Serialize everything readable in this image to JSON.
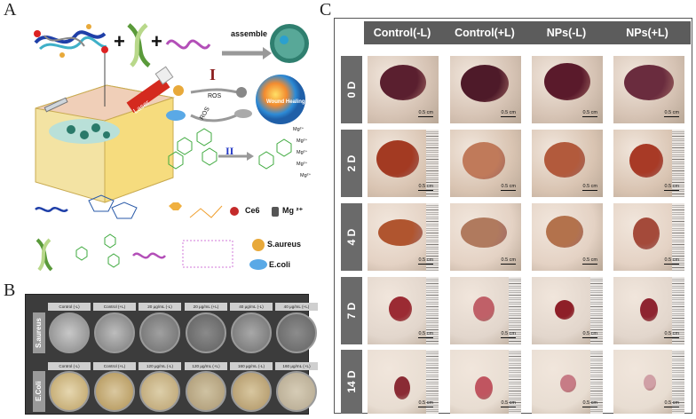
{
  "panel_a": {
    "letter": "A",
    "assemble_label": "assemble",
    "laser_label": "Laser",
    "ros_label_1": "ROS",
    "ros_label_2": "ROS",
    "step_1": "I",
    "step_2": "II",
    "sphere_text": "Wound Healing",
    "ion_labels": [
      "Mg²⁺",
      "Mg²⁺",
      "Mg²⁺",
      "Mg²⁺",
      "Mg²⁺"
    ],
    "legend": {
      "ce6": "Ce6",
      "mg": "Mg ²⁺",
      "saureus": "S.aureus",
      "ecoli": "E.coli"
    }
  },
  "panel_b": {
    "letter": "B",
    "rows": [
      {
        "label": "S.aureus",
        "caps": [
          "Control (-L)",
          "Control (+L)",
          "20 μg/mL (-L)",
          "20 μg/mL (+L)",
          "40 μg/mL (-L)",
          "40 μg/mL (+L)"
        ]
      },
      {
        "label": "E.Coli",
        "caps": [
          "Control (-L)",
          "Control (+L)",
          "120 μg/mL (-L)",
          "120 μg/mL (+L)",
          "160 μg/mL (-L)",
          "160 μg/mL (+L)"
        ]
      }
    ]
  },
  "panel_c": {
    "letter": "C",
    "columns": [
      "Control(-L)",
      "Control(+L)",
      "NPs(-L)",
      "NPs(+L)"
    ],
    "rows": [
      "0 D",
      "2 D",
      "4 D",
      "7 D",
      "14 D"
    ],
    "scale_label": "0.5 cm"
  }
}
